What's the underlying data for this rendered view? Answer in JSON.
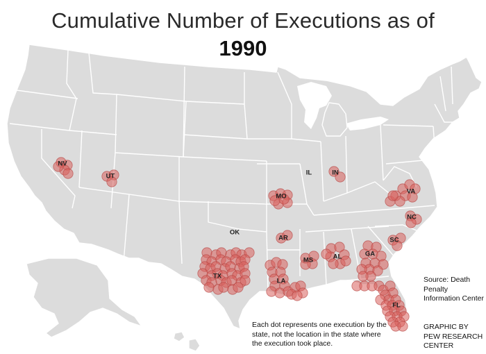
{
  "title": "Cumulative Number of Executions as of",
  "year": "1990",
  "note": "Each dot represents one execution by the state, not the location in the state where the execution took place.",
  "source": "Source: Death Penalty Information Center",
  "credit": "GRAPHIC BY PEW RESEARCH CENTER",
  "colors": {
    "land": "#dcdcdc",
    "border": "#ffffff",
    "dot_fill": "#d9605c",
    "dot_stroke": "#b54542"
  },
  "states": [
    {
      "abbr": "NV",
      "executions": 5
    },
    {
      "abbr": "UT",
      "executions": 3
    },
    {
      "abbr": "IL",
      "executions": 0
    },
    {
      "abbr": "IN",
      "executions": 2
    },
    {
      "abbr": "MO",
      "executions": 7
    },
    {
      "abbr": "OK",
      "executions": 0
    },
    {
      "abbr": "AR",
      "executions": 2
    },
    {
      "abbr": "TX",
      "executions": 40
    },
    {
      "abbr": "LA",
      "executions": 17
    },
    {
      "abbr": "MS",
      "executions": 4
    },
    {
      "abbr": "AL",
      "executions": 8
    },
    {
      "abbr": "GA",
      "executions": 13
    },
    {
      "abbr": "FL",
      "executions": 24
    },
    {
      "abbr": "SC",
      "executions": 3
    },
    {
      "abbr": "NC",
      "executions": 3
    },
    {
      "abbr": "VA",
      "executions": 9
    }
  ]
}
